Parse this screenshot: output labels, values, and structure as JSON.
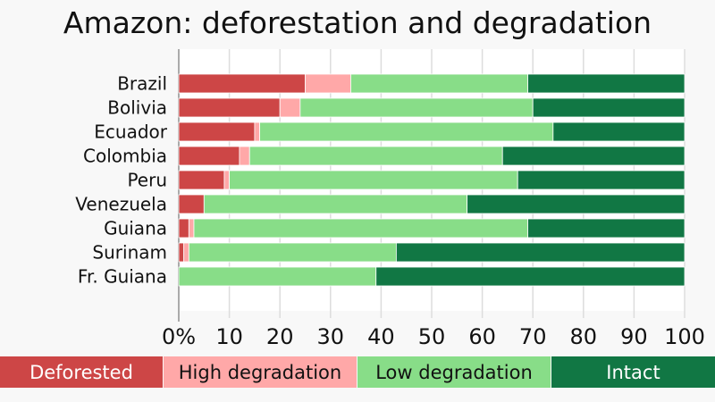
{
  "chart_data": {
    "type": "bar",
    "orientation": "horizontal",
    "stacked": true,
    "title": "Amazon: deforestation and degradation",
    "categories": [
      "Brazil",
      "Bolivia",
      "Ecuador",
      "Colombia",
      "Peru",
      "Venezuela",
      "Guiana",
      "Surinam",
      "Fr. Guiana"
    ],
    "series": [
      {
        "name": "Deforested",
        "color": "#cd4646",
        "values": [
          25,
          20,
          15,
          12,
          9,
          5,
          2,
          1,
          0
        ]
      },
      {
        "name": "High degradation",
        "color": "#ffa8a8",
        "values": [
          9,
          4,
          1,
          2,
          1,
          0,
          1,
          1,
          0
        ]
      },
      {
        "name": "Low degradation",
        "color": "#88dd88",
        "values": [
          35,
          46,
          58,
          50,
          57,
          52,
          66,
          41,
          39
        ]
      },
      {
        "name": "Intact",
        "color": "#117744",
        "values": [
          31,
          30,
          26,
          36,
          33,
          43,
          31,
          57,
          61
        ]
      }
    ],
    "xlim": [
      0,
      100
    ],
    "xticks": [
      "0%",
      "10",
      "20",
      "30",
      "40",
      "50",
      "60",
      "70",
      "80",
      "90",
      "100"
    ],
    "grid": true,
    "legend_placement": "bottom"
  }
}
